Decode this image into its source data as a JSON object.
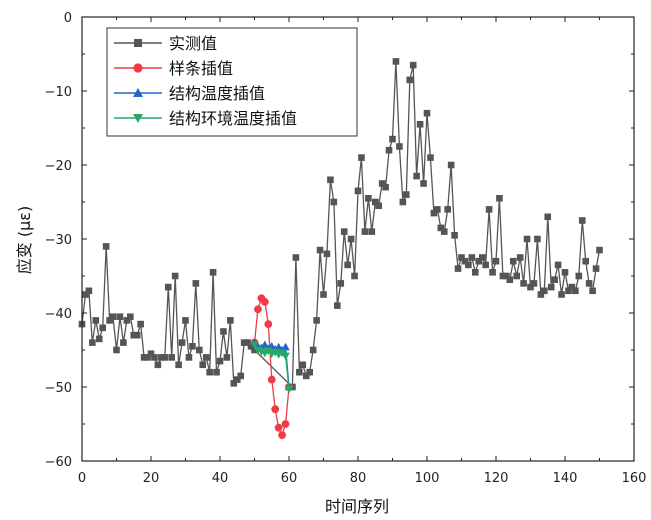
{
  "chart_data": {
    "type": "line",
    "xlabel": "时间序列",
    "ylabel": "应变 (με)",
    "xlim": [
      0,
      160
    ],
    "ylim": [
      -60,
      0
    ],
    "xticks": [
      0,
      20,
      40,
      60,
      80,
      100,
      120,
      140,
      160
    ],
    "yticks": [
      0,
      -10,
      -20,
      -30,
      -40,
      -50,
      -60
    ],
    "grid": false,
    "legend_position": "top-left",
    "series": [
      {
        "name": "实测值",
        "color": "#555555",
        "marker": "square",
        "x": [
          0,
          1,
          2,
          3,
          4,
          5,
          6,
          7,
          8,
          9,
          10,
          11,
          12,
          13,
          14,
          15,
          16,
          17,
          18,
          19,
          20,
          21,
          22,
          23,
          24,
          25,
          26,
          27,
          28,
          29,
          30,
          31,
          32,
          33,
          34,
          35,
          36,
          37,
          38,
          39,
          40,
          41,
          42,
          43,
          44,
          45,
          46,
          47,
          48,
          49,
          50,
          61,
          62,
          63,
          64,
          65,
          66,
          67,
          68,
          69,
          70,
          71,
          72,
          73,
          74,
          75,
          76,
          77,
          78,
          79,
          80,
          81,
          82,
          83,
          84,
          85,
          86,
          87,
          88,
          89,
          90,
          91,
          92,
          93,
          94,
          95,
          96,
          97,
          98,
          99,
          100,
          101,
          102,
          103,
          104,
          105,
          106,
          107,
          108,
          109,
          110,
          111,
          112,
          113,
          114,
          115,
          116,
          117,
          118,
          119,
          120,
          121,
          122,
          123,
          124,
          125,
          126,
          127,
          128,
          129,
          130,
          131,
          132,
          133,
          134,
          135,
          136,
          137,
          138,
          139,
          140,
          141,
          142,
          143,
          144,
          145,
          146,
          147,
          148,
          149,
          150
        ],
        "y": [
          -41.5,
          -37.5,
          -37,
          -44,
          -41,
          -43.5,
          -42,
          -31,
          -41,
          -40.5,
          -45,
          -40.5,
          -44,
          -41,
          -40.5,
          -43,
          -43,
          -41.5,
          -46,
          -46,
          -45.5,
          -46,
          -47,
          -46,
          -46,
          -36.5,
          -46,
          -35,
          -47,
          -44,
          -41,
          -46,
          -44.5,
          -36,
          -45,
          -47,
          -46,
          -48,
          -34.5,
          -48,
          -46.5,
          -42.5,
          -46,
          -41,
          -49.5,
          -49,
          -48.5,
          -44,
          -44,
          -44.5,
          -45,
          -50,
          -32.5,
          -48,
          -47,
          -48.5,
          -48,
          -45,
          -41,
          -31.5,
          -37.5,
          -32,
          -22,
          -25,
          -39,
          -36,
          -29,
          -33.5,
          -30,
          -35,
          -23.5,
          -19,
          -29,
          -24.5,
          -29,
          -25,
          -25.5,
          -22.5,
          -23,
          -18,
          -16.5,
          -6,
          -17.5,
          -25,
          -24,
          -8.5,
          -6.5,
          -21.5,
          -14.5,
          -22.5,
          -13,
          -19,
          -26.5,
          -26,
          -28.5,
          -29,
          -26,
          -20,
          -29.5,
          -34,
          -32.5,
          -33,
          -33.5,
          -32.5,
          -34.5,
          -33,
          -32.5,
          -33.5,
          -26,
          -34.5,
          -33,
          -24.5,
          -35,
          -35,
          -35.5,
          -33,
          -35,
          -32.5,
          -36,
          -30,
          -36.5,
          -36,
          -30,
          -37.5,
          -37,
          -27,
          -36.5,
          -35.5,
          -33.5,
          -37.5,
          -34.5,
          -37,
          -36.5,
          -37,
          -35,
          -27.5,
          -33,
          -36,
          -37,
          -34,
          -31.5
        ]
      },
      {
        "name": "样条插值",
        "color": "#ee3b45",
        "marker": "circle",
        "x": [
          50,
          51,
          52,
          53,
          54,
          55,
          56,
          57,
          58,
          59,
          60
        ],
        "y": [
          -44,
          -39.5,
          -38,
          -38.5,
          -41.5,
          -49,
          -53,
          -55.5,
          -56.5,
          -55,
          -50
        ]
      },
      {
        "name": "结构温度插值",
        "color": "#2566c8",
        "marker": "triangle-up",
        "x": [
          50,
          51,
          52,
          53,
          54,
          55,
          56,
          57,
          58,
          59,
          60
        ],
        "y": [
          -44,
          -44.5,
          -44.7,
          -44.3,
          -44.8,
          -44.5,
          -44.9,
          -44.6,
          -45,
          -44.6,
          -50
        ]
      },
      {
        "name": "结构环境温度插值",
        "color": "#25a968",
        "marker": "triangle-down",
        "x": [
          50,
          51,
          52,
          53,
          54,
          55,
          56,
          57,
          58,
          59,
          60
        ],
        "y": [
          -44.3,
          -45,
          -45.2,
          -45.4,
          -45.1,
          -45.5,
          -45.3,
          -45.6,
          -45.4,
          -45.8,
          -50.3
        ]
      }
    ]
  }
}
